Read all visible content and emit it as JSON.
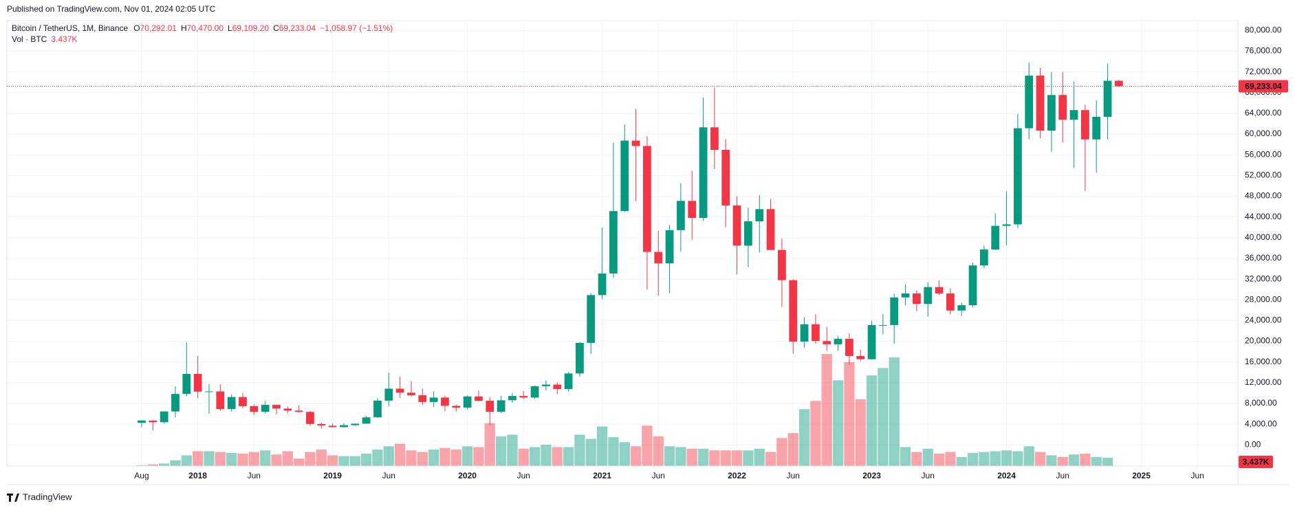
{
  "header": "Published on TradingView.com, Nov 01, 2024 02:05 UTC",
  "footer": "TradingView",
  "chart_data": {
    "type": "candlestick",
    "title": "Bitcoin / TetherUS, 1M, Binance",
    "ohlc_legend": [
      {
        "key": "O",
        "text": "70,292.01"
      },
      {
        "key": "H",
        "text": "70,470.00"
      },
      {
        "key": "L",
        "text": "69,109.20"
      },
      {
        "key": "C",
        "text": "69,233.04"
      }
    ],
    "change": "−1,058.97 (−1.51%)",
    "volume_title": "Vol · BTC",
    "volume_last_label": "3.437K",
    "up_color": "#089981",
    "down_color": "#f23645",
    "grid": true,
    "open": [
      4261,
      4689,
      4378,
      6463,
      9837,
      13715,
      10285,
      10325,
      6922,
      9246,
      7485,
      6391,
      7730,
      7011,
      6626,
      6370,
      4041,
      3701,
      3434,
      3814,
      4102,
      5321,
      8555,
      10854,
      10080,
      9589,
      8289,
      9140,
      7541,
      7196,
      9351,
      8523,
      6412,
      8621,
      9448,
      9138,
      11335,
      11649,
      10776,
      13791,
      19695,
      28923,
      33092,
      45134,
      58739,
      57697,
      37253,
      35045,
      41461,
      47100,
      43820,
      61300,
      56951,
      46216,
      38466,
      43160,
      45510,
      37631,
      31801,
      19942,
      23296,
      20048,
      19422,
      20491,
      17165,
      16541,
      23125,
      23141,
      28465,
      29233,
      27210,
      30472,
      29232,
      25941,
      26963,
      34640,
      37723,
      42283,
      42580,
      61130,
      71280,
      60672,
      67540,
      62772,
      64628,
      58974,
      63327,
      70292.01
    ],
    "high": [
      4745,
      4789,
      6470,
      11300,
      19798,
      17176,
      11786,
      11710,
      9765,
      10020,
      7786,
      8507,
      7750,
      7410,
      7680,
      6590,
      4313,
      4143,
      4198,
      4140,
      5600,
      9074,
      13970,
      13200,
      12325,
      10905,
      10370,
      9513,
      7750,
      9578,
      10500,
      9188,
      9460,
      10067,
      10380,
      11444,
      12468,
      12050,
      14100,
      19863,
      29300,
      41950,
      58352,
      61844,
      64854,
      59592,
      41330,
      42448,
      50500,
      52920,
      67000,
      69000,
      59053,
      47990,
      45821,
      48189,
      47444,
      39845,
      31982,
      24668,
      25211,
      22799,
      21085,
      21480,
      18387,
      23960,
      25250,
      29184,
      31000,
      29820,
      31431,
      31804,
      30244,
      27483,
      35198,
      38450,
      44700,
      48969,
      63913,
      73777,
      72797,
      71979,
      71997,
      70079,
      65660,
      66498,
      73620,
      70470
    ],
    "low": [
      3400,
      2817,
      4110,
      5325,
      9380,
      9035,
      6000,
      6600,
      6430,
      7032,
      5750,
      6070,
      5880,
      6100,
      6200,
      3652,
      3157,
      3349,
      3370,
      3670,
      4067,
      5273,
      7444,
      9070,
      9320,
      7710,
      7300,
      6515,
      6435,
      6871,
      8445,
      3782,
      6150,
      8117,
      8833,
      8893,
      10518,
      9825,
      10374,
      13195,
      17572,
      28130,
      32296,
      44950,
      47044,
      30000,
      28805,
      29278,
      37332,
      39600,
      43283,
      53256,
      42000,
      32917,
      34322,
      37155,
      37578,
      26700,
      17622,
      18781,
      19520,
      18125,
      18190,
      15476,
      16256,
      16499,
      21351,
      19549,
      26942,
      25811,
      24800,
      28861,
      25166,
      24901,
      26538,
      34097,
      37629,
      38555,
      41884,
      59005,
      59191,
      56552,
      58402,
      53485,
      49000,
      52550,
      58946,
      69109.2
    ],
    "close": [
      4724,
      4378,
      6463,
      9838,
      13716,
      10285,
      10326,
      6923,
      9246,
      7485,
      6390,
      7730,
      7011,
      6626,
      6371,
      4041,
      3742,
      3437,
      3813,
      4105,
      5320,
      8555,
      10855,
      10085,
      9588,
      8289,
      9140,
      7541,
      7195,
      9352,
      8523,
      6410,
      8620,
      9448,
      9138,
      11335,
      11649,
      10776,
      13791,
      19695,
      28923,
      33092,
      45135,
      58740,
      57694,
      37253,
      35045,
      41461,
      47100,
      43824,
      61299,
      56950,
      46216,
      38466,
      43160,
      45510,
      37630,
      31801,
      19942,
      23293,
      20050,
      19423,
      20490,
      17164,
      16542,
      23125,
      23141,
      28465,
      29233,
      27210,
      30472,
      29232,
      25941,
      26963,
      34640,
      37724,
      42284,
      42580,
      61130,
      71280,
      60672,
      67540,
      62772,
      64628,
      58974,
      63327,
      70292,
      69233.04
    ],
    "volume": [
      10000,
      20000,
      30000,
      70000,
      130000,
      180000,
      180000,
      170000,
      160000,
      150000,
      170000,
      190000,
      140000,
      180000,
      90000,
      170000,
      200000,
      130000,
      120000,
      120000,
      150000,
      200000,
      240000,
      270000,
      190000,
      170000,
      200000,
      220000,
      200000,
      240000,
      230000,
      520000,
      360000,
      380000,
      210000,
      230000,
      260000,
      230000,
      230000,
      380000,
      330000,
      480000,
      350000,
      290000,
      240000,
      490000,
      360000,
      240000,
      230000,
      210000,
      210000,
      190000,
      190000,
      190000,
      190000,
      210000,
      170000,
      340000,
      400000,
      690000,
      790000,
      1360000,
      1040000,
      1260000,
      810000,
      1100000,
      1190000,
      1320000,
      230000,
      170000,
      210000,
      150000,
      170000,
      110000,
      160000,
      170000,
      180000,
      190000,
      180000,
      240000,
      170000,
      130000,
      110000,
      140000,
      150000,
      110000,
      100000,
      3437
    ],
    "xlim": [
      -12,
      97.6
    ],
    "xticks": [
      {
        "value": 0,
        "label": "Aug"
      },
      {
        "value": 5,
        "label": "2018"
      },
      {
        "value": 10,
        "label": "Jun"
      },
      {
        "value": 17,
        "label": "2019"
      },
      {
        "value": 22,
        "label": "Jun"
      },
      {
        "value": 29,
        "label": "2020"
      },
      {
        "value": 34,
        "label": "Jun"
      },
      {
        "value": 41,
        "label": "2021"
      },
      {
        "value": 46,
        "label": "Jun"
      },
      {
        "value": 53,
        "label": "2022"
      },
      {
        "value": 58,
        "label": "Jun"
      },
      {
        "value": 65,
        "label": "2023"
      },
      {
        "value": 70,
        "label": "Jun"
      },
      {
        "value": 77,
        "label": "2024"
      },
      {
        "value": 82,
        "label": "Jun"
      },
      {
        "value": 89,
        "label": "2025"
      },
      {
        "value": 94,
        "label": "Jun"
      }
    ],
    "ylim": [
      -4070,
      81900
    ],
    "yticks": [
      {
        "value": 0,
        "label": "0.00"
      },
      {
        "value": 4000,
        "label": "4,000.00"
      },
      {
        "value": 8000,
        "label": "8,000.00"
      },
      {
        "value": 12000,
        "label": "12,000.00"
      },
      {
        "value": 16000,
        "label": "16,000.00"
      },
      {
        "value": 20000,
        "label": "20,000.00"
      },
      {
        "value": 24000,
        "label": "24,000.00"
      },
      {
        "value": 28000,
        "label": "28,000.00"
      },
      {
        "value": 32000,
        "label": "32,000.00"
      },
      {
        "value": 36000,
        "label": "36,000.00"
      },
      {
        "value": 40000,
        "label": "40,000.00"
      },
      {
        "value": 44000,
        "label": "44,000.00"
      },
      {
        "value": 48000,
        "label": "48,000.00"
      },
      {
        "value": 52000,
        "label": "52,000.00"
      },
      {
        "value": 56000,
        "label": "56,000.00"
      },
      {
        "value": 60000,
        "label": "60,000.00"
      },
      {
        "value": 64000,
        "label": "64,000.00"
      },
      {
        "value": 68000,
        "label": "68,000.00"
      },
      {
        "value": 72000,
        "label": "72,000.00"
      },
      {
        "value": 76000,
        "label": "76,000.00"
      },
      {
        "value": 80000,
        "label": "80,000.00"
      }
    ]
  }
}
